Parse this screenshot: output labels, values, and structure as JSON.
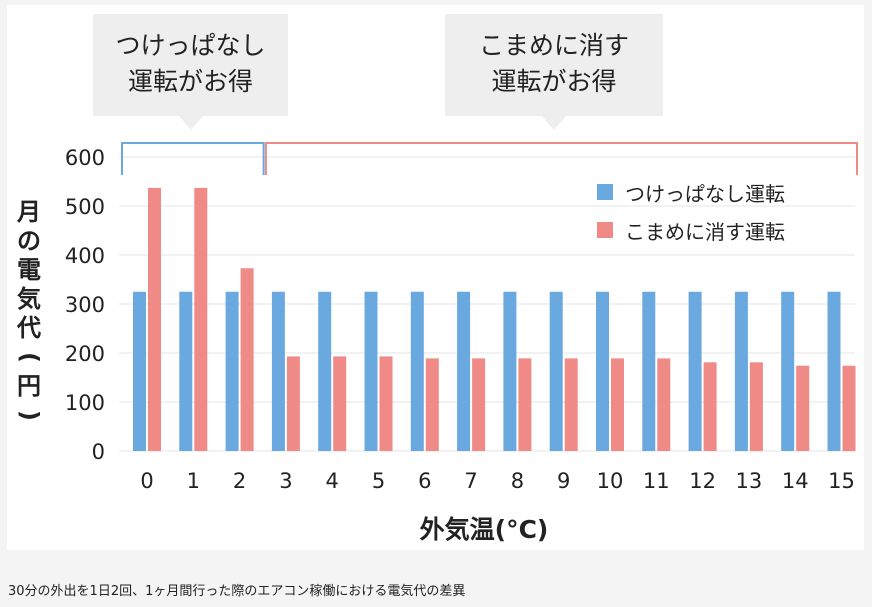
{
  "callouts": [
    {
      "line1": "つけっぱなし",
      "line2": "運転がお得"
    },
    {
      "line1": "こまめに消す",
      "line2": "運転がお得"
    }
  ],
  "y_axis_label_chars": [
    "月",
    "の",
    "電",
    "気",
    "代",
    "(",
    "円",
    ")"
  ],
  "caption": "30分の外出を1日2回、1ヶ月間行った際のエアコン稼働における電気代の差異",
  "colors": {
    "series1": "#6aa9e0",
    "series2": "#ef8a86",
    "bracket1": "#6aa9e0",
    "bracket2": "#ef8a86"
  },
  "chart_data": {
    "type": "bar",
    "xlabel": "外気温(°C)",
    "ylabel": "月の電気代(円)",
    "categories": [
      "0",
      "1",
      "2",
      "3",
      "4",
      "5",
      "6",
      "7",
      "8",
      "9",
      "10",
      "11",
      "12",
      "13",
      "14",
      "15"
    ],
    "ylim": [
      0,
      600
    ],
    "yticks": [
      0,
      100,
      200,
      300,
      400,
      500,
      600
    ],
    "grid": true,
    "legend": "top-right",
    "series": [
      {
        "name": "つけっぱなし運転",
        "values": [
          325,
          325,
          325,
          325,
          325,
          325,
          325,
          325,
          325,
          325,
          325,
          325,
          325,
          325,
          325,
          325
        ]
      },
      {
        "name": "こまめに消す運転",
        "values": [
          537,
          537,
          373,
          193,
          193,
          193,
          189,
          189,
          189,
          189,
          189,
          189,
          181,
          181,
          174,
          174
        ]
      }
    ]
  }
}
